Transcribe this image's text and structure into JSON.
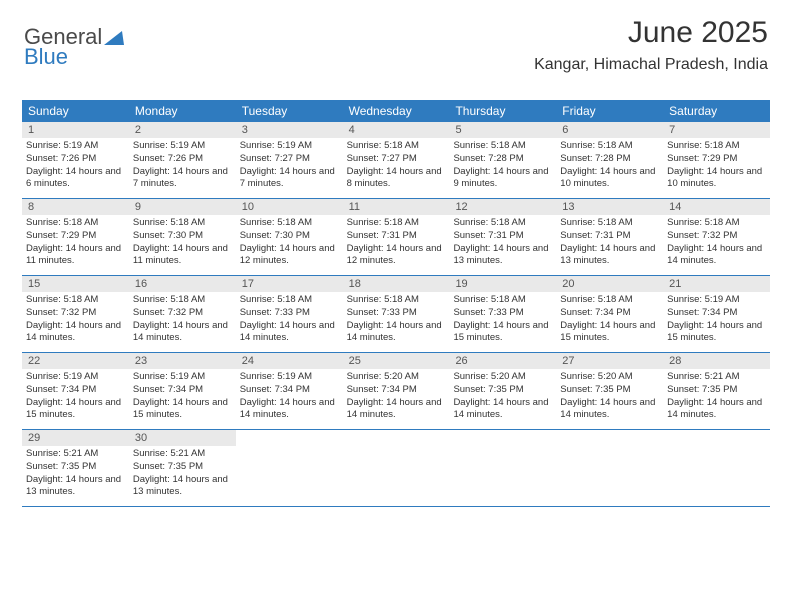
{
  "logo": {
    "text1": "General",
    "text2": "Blue"
  },
  "title": "June 2025",
  "location": "Kangar, Himachal Pradesh, India",
  "colors": {
    "header_bg": "#2f7bbf",
    "header_text": "#ffffff",
    "daynum_bg": "#e9e9e9",
    "border": "#2f7bbf",
    "background": "#ffffff"
  },
  "days_of_week": [
    "Sunday",
    "Monday",
    "Tuesday",
    "Wednesday",
    "Thursday",
    "Friday",
    "Saturday"
  ],
  "weeks": [
    [
      {
        "n": "1",
        "sr": "5:19 AM",
        "ss": "7:26 PM",
        "dl": "14 hours and 6 minutes."
      },
      {
        "n": "2",
        "sr": "5:19 AM",
        "ss": "7:26 PM",
        "dl": "14 hours and 7 minutes."
      },
      {
        "n": "3",
        "sr": "5:19 AM",
        "ss": "7:27 PM",
        "dl": "14 hours and 7 minutes."
      },
      {
        "n": "4",
        "sr": "5:18 AM",
        "ss": "7:27 PM",
        "dl": "14 hours and 8 minutes."
      },
      {
        "n": "5",
        "sr": "5:18 AM",
        "ss": "7:28 PM",
        "dl": "14 hours and 9 minutes."
      },
      {
        "n": "6",
        "sr": "5:18 AM",
        "ss": "7:28 PM",
        "dl": "14 hours and 10 minutes."
      },
      {
        "n": "7",
        "sr": "5:18 AM",
        "ss": "7:29 PM",
        "dl": "14 hours and 10 minutes."
      }
    ],
    [
      {
        "n": "8",
        "sr": "5:18 AM",
        "ss": "7:29 PM",
        "dl": "14 hours and 11 minutes."
      },
      {
        "n": "9",
        "sr": "5:18 AM",
        "ss": "7:30 PM",
        "dl": "14 hours and 11 minutes."
      },
      {
        "n": "10",
        "sr": "5:18 AM",
        "ss": "7:30 PM",
        "dl": "14 hours and 12 minutes."
      },
      {
        "n": "11",
        "sr": "5:18 AM",
        "ss": "7:31 PM",
        "dl": "14 hours and 12 minutes."
      },
      {
        "n": "12",
        "sr": "5:18 AM",
        "ss": "7:31 PM",
        "dl": "14 hours and 13 minutes."
      },
      {
        "n": "13",
        "sr": "5:18 AM",
        "ss": "7:31 PM",
        "dl": "14 hours and 13 minutes."
      },
      {
        "n": "14",
        "sr": "5:18 AM",
        "ss": "7:32 PM",
        "dl": "14 hours and 14 minutes."
      }
    ],
    [
      {
        "n": "15",
        "sr": "5:18 AM",
        "ss": "7:32 PM",
        "dl": "14 hours and 14 minutes."
      },
      {
        "n": "16",
        "sr": "5:18 AM",
        "ss": "7:32 PM",
        "dl": "14 hours and 14 minutes."
      },
      {
        "n": "17",
        "sr": "5:18 AM",
        "ss": "7:33 PM",
        "dl": "14 hours and 14 minutes."
      },
      {
        "n": "18",
        "sr": "5:18 AM",
        "ss": "7:33 PM",
        "dl": "14 hours and 14 minutes."
      },
      {
        "n": "19",
        "sr": "5:18 AM",
        "ss": "7:33 PM",
        "dl": "14 hours and 15 minutes."
      },
      {
        "n": "20",
        "sr": "5:18 AM",
        "ss": "7:34 PM",
        "dl": "14 hours and 15 minutes."
      },
      {
        "n": "21",
        "sr": "5:19 AM",
        "ss": "7:34 PM",
        "dl": "14 hours and 15 minutes."
      }
    ],
    [
      {
        "n": "22",
        "sr": "5:19 AM",
        "ss": "7:34 PM",
        "dl": "14 hours and 15 minutes."
      },
      {
        "n": "23",
        "sr": "5:19 AM",
        "ss": "7:34 PM",
        "dl": "14 hours and 15 minutes."
      },
      {
        "n": "24",
        "sr": "5:19 AM",
        "ss": "7:34 PM",
        "dl": "14 hours and 14 minutes."
      },
      {
        "n": "25",
        "sr": "5:20 AM",
        "ss": "7:34 PM",
        "dl": "14 hours and 14 minutes."
      },
      {
        "n": "26",
        "sr": "5:20 AM",
        "ss": "7:35 PM",
        "dl": "14 hours and 14 minutes."
      },
      {
        "n": "27",
        "sr": "5:20 AM",
        "ss": "7:35 PM",
        "dl": "14 hours and 14 minutes."
      },
      {
        "n": "28",
        "sr": "5:21 AM",
        "ss": "7:35 PM",
        "dl": "14 hours and 14 minutes."
      }
    ],
    [
      {
        "n": "29",
        "sr": "5:21 AM",
        "ss": "7:35 PM",
        "dl": "14 hours and 13 minutes."
      },
      {
        "n": "30",
        "sr": "5:21 AM",
        "ss": "7:35 PM",
        "dl": "14 hours and 13 minutes."
      },
      null,
      null,
      null,
      null,
      null
    ]
  ],
  "labels": {
    "sunrise": "Sunrise:",
    "sunset": "Sunset:",
    "daylight": "Daylight:"
  }
}
